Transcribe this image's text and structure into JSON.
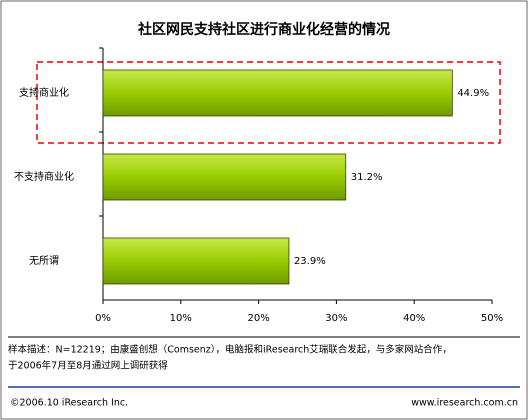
{
  "chart_data": {
    "type": "hbar",
    "title": "社区网民支持社区进行商业化经营的情况",
    "categories": [
      "支持商业化",
      "不支持商业化",
      "无所谓"
    ],
    "values": [
      44.9,
      31.2,
      23.9
    ],
    "value_labels": [
      "44.9%",
      "31.2%",
      "23.9%"
    ],
    "color": "#99cc00",
    "xlim": [
      0,
      50
    ],
    "xticks": [
      {
        "value": 0,
        "label": "0%"
      },
      {
        "value": 10,
        "label": "10%"
      },
      {
        "value": 20,
        "label": "20%"
      },
      {
        "value": 30,
        "label": "30%"
      },
      {
        "value": 40,
        "label": "40%"
      },
      {
        "value": 50,
        "label": "50%"
      }
    ],
    "grid": false
  },
  "footer": {
    "note_line1": "样本描述：N=12219；由康盛创想（Comsenz），电脑报和iResearch艾瑞联合发起，与多家网站合作，",
    "note_line2": "于2006年7月至8月通过网上调研获得",
    "copyright": "©2006.10 iResearch Inc.",
    "website": "www.iresearch.com.cn"
  }
}
